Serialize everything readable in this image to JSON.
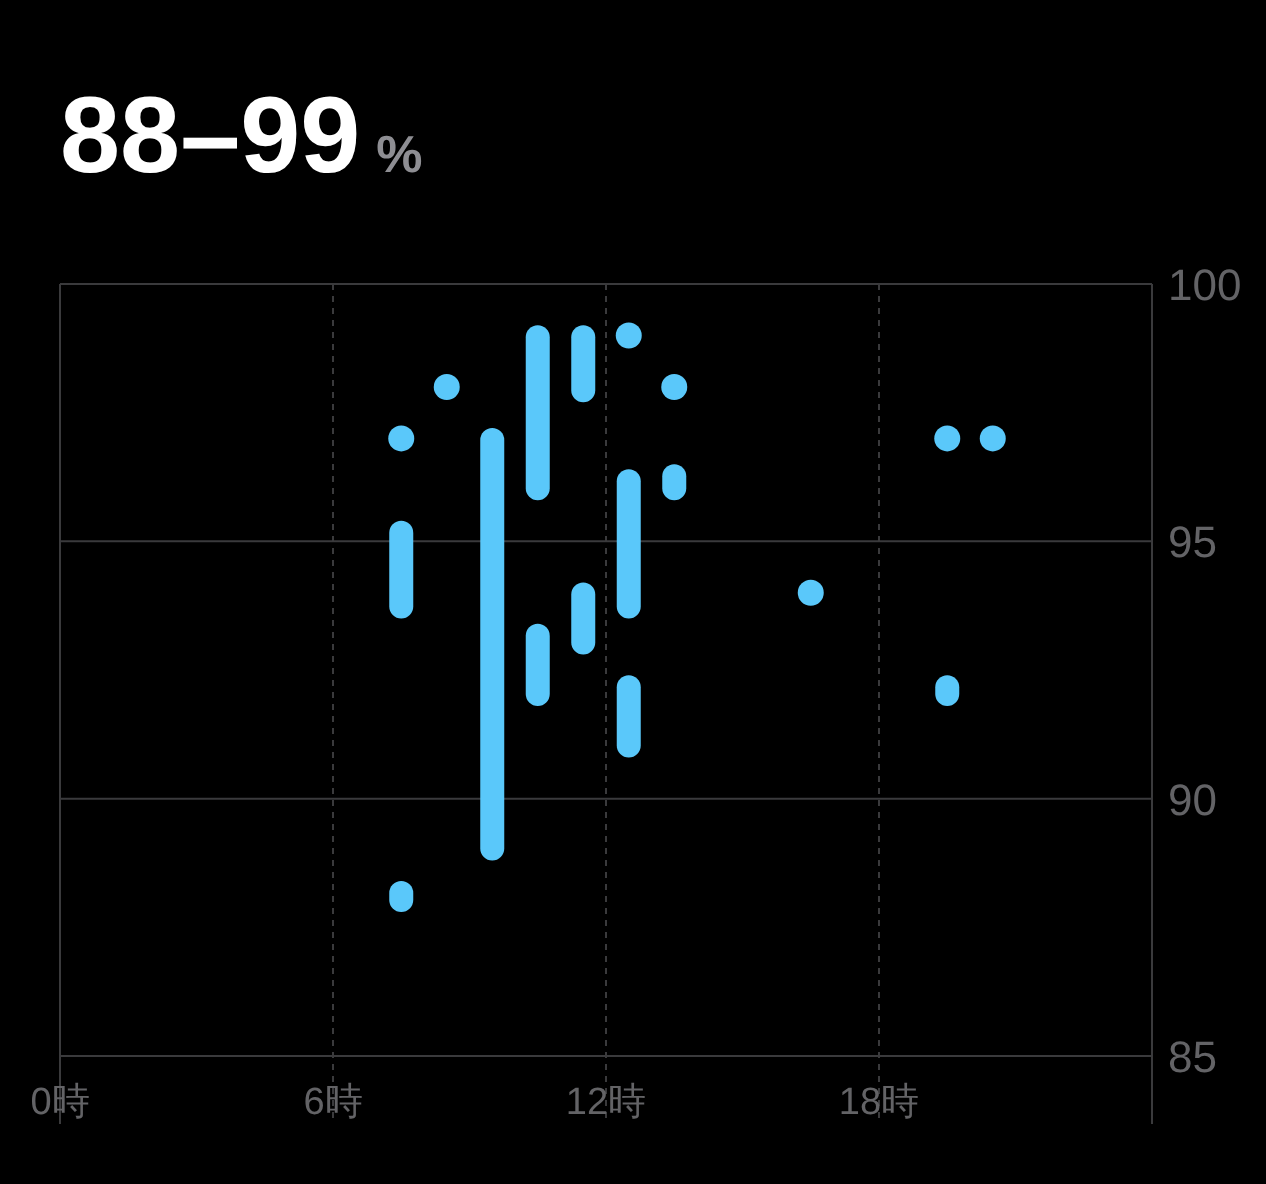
{
  "chart_data": {
    "type": "bar",
    "title": "88–99",
    "subtitle": "%",
    "series": [
      {
        "type": "scatter",
        "marker": "circle",
        "color": "#5ac8fa",
        "x": [
          7.5,
          8.5,
          12.5,
          13.5,
          16.5,
          19.5,
          20.5
        ],
        "values": [
          97,
          98,
          99,
          98,
          94,
          97,
          97
        ]
      },
      {
        "color": "#5ac8fa",
        "x": [
          7.5,
          9.5,
          10.5,
          11.5,
          12.5,
          13.5,
          19.5
        ],
        "base": [
          93.5,
          88.8,
          95.8,
          97.7,
          93.5,
          95.8,
          91.8
        ],
        "values": [
          1.9,
          8.4,
          3.4,
          1.5,
          2.9,
          0.7,
          0.6
        ]
      },
      {
        "color": "#5ac8fa",
        "x": [
          7.5,
          10.5,
          11.5,
          12.5
        ],
        "base": [
          87.8,
          91.8,
          92.8,
          90.8
        ],
        "values": [
          0.6,
          1.6,
          1.4,
          1.6
        ]
      }
    ],
    "xlim": [
      0,
      24
    ],
    "xticks": [
      {
        "value": 0,
        "label": "0時"
      },
      {
        "value": 6,
        "label": "6時"
      },
      {
        "value": 12,
        "label": "12時"
      },
      {
        "value": 18,
        "label": "18時"
      }
    ],
    "ylim": [
      85,
      100
    ],
    "yticks": [
      85,
      90,
      95,
      100
    ],
    "grid": true
  }
}
